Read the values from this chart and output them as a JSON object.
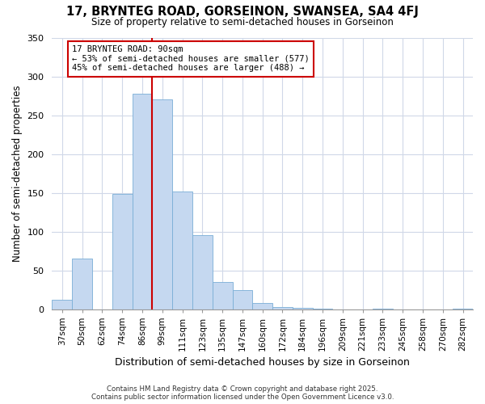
{
  "title1": "17, BRYNTEG ROAD, GORSEINON, SWANSEA, SA4 4FJ",
  "title2": "Size of property relative to semi-detached houses in Gorseinon",
  "xlabel": "Distribution of semi-detached houses by size in Gorseinon",
  "ylabel": "Number of semi-detached properties",
  "categories": [
    "37sqm",
    "50sqm",
    "62sqm",
    "74sqm",
    "86sqm",
    "99sqm",
    "111sqm",
    "123sqm",
    "135sqm",
    "147sqm",
    "160sqm",
    "172sqm",
    "184sqm",
    "196sqm",
    "209sqm",
    "221sqm",
    "233sqm",
    "245sqm",
    "258sqm",
    "270sqm",
    "282sqm"
  ],
  "bar_values": [
    12,
    65,
    0,
    148,
    278,
    270,
    152,
    95,
    35,
    25,
    8,
    3,
    2,
    1,
    0,
    0,
    1,
    0,
    0,
    0,
    1
  ],
  "bar_color": "#c5d8f0",
  "bar_edgecolor": "#7aaed6",
  "property_label": "17 BRYNTEG ROAD: 90sqm",
  "smaller_pct": "53%",
  "smaller_count": 577,
  "larger_pct": "45%",
  "larger_count": 488,
  "vline_color": "#cc0000",
  "ylim": [
    0,
    350
  ],
  "yticks": [
    0,
    50,
    100,
    150,
    200,
    250,
    300,
    350
  ],
  "footer_line1": "Contains HM Land Registry data © Crown copyright and database right 2025.",
  "footer_line2": "Contains public sector information licensed under the Open Government Licence v3.0.",
  "bg_color": "#ffffff",
  "grid_color": "#d0d8e8"
}
